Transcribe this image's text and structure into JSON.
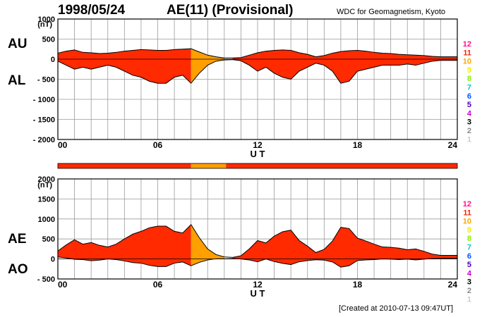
{
  "header": {
    "date": "1998/05/24",
    "title": "AE(11) (Provisional)",
    "credit": "WDC for Geomagnetism, Kyoto"
  },
  "footer": {
    "created": "[Created at 2010-07-13 09:47UT]"
  },
  "colors": {
    "high": "#ff2a00",
    "mid": "#ff9f00",
    "level_ramp": [
      "#cccccc",
      "#888888",
      "#000000",
      "#cc00cc",
      "#4400bb",
      "#0055ff",
      "#00cccc",
      "#88ee00",
      "#eeee00",
      "#ffa500",
      "#ff2200",
      "#ff1188"
    ]
  },
  "chart_data": [
    {
      "type": "area",
      "title": "",
      "labels": {
        "upper": "AU",
        "lower": "AL"
      },
      "unit": "(nT)",
      "xlabel": "U T",
      "xlim": [
        0,
        24
      ],
      "ylim": [
        -2000,
        1000
      ],
      "yticks": [
        "1000",
        "500",
        "0",
        "- 500",
        "- 1000",
        "- 1500",
        "- 2000"
      ],
      "ytick_values": [
        1000,
        500,
        0,
        -500,
        -1000,
        -1500,
        -2000
      ],
      "xticks": [
        "00",
        "06",
        "12",
        "18",
        "24"
      ],
      "grid": true,
      "x": [
        0,
        0.5,
        1,
        1.5,
        2,
        2.5,
        3,
        3.5,
        4,
        4.5,
        5,
        5.5,
        6,
        6.5,
        7,
        7.5,
        8,
        8.5,
        9,
        9.5,
        10,
        10.5,
        11,
        11.5,
        12,
        12.5,
        13,
        13.5,
        14,
        14.5,
        15,
        15.5,
        16,
        16.5,
        17,
        17.5,
        18,
        18.5,
        19,
        19.5,
        20,
        20.5,
        21,
        21.5,
        22,
        22.5,
        23,
        23.5,
        24
      ],
      "series": [
        {
          "name": "AU",
          "values": [
            150,
            200,
            230,
            170,
            160,
            140,
            150,
            170,
            200,
            220,
            240,
            230,
            220,
            220,
            240,
            250,
            260,
            180,
            100,
            60,
            30,
            30,
            40,
            100,
            160,
            200,
            220,
            230,
            220,
            160,
            120,
            60,
            90,
            150,
            190,
            210,
            220,
            200,
            170,
            150,
            140,
            120,
            110,
            100,
            90,
            70,
            60,
            60,
            60
          ]
        },
        {
          "name": "AL",
          "values": [
            -50,
            -150,
            -250,
            -200,
            -250,
            -200,
            -150,
            -200,
            -300,
            -400,
            -450,
            -550,
            -600,
            -600,
            -450,
            -400,
            -600,
            -350,
            -150,
            -50,
            -20,
            -10,
            -40,
            -150,
            -300,
            -200,
            -350,
            -450,
            -500,
            -300,
            -200,
            -100,
            -150,
            -300,
            -600,
            -550,
            -300,
            -250,
            -200,
            -150,
            -150,
            -150,
            -120,
            -150,
            -100,
            -50,
            -30,
            -30,
            -30
          ]
        }
      ]
    },
    {
      "type": "area",
      "title": "",
      "labels": {
        "upper": "AE",
        "lower": "AO"
      },
      "unit": "(nT)",
      "xlabel": "U T",
      "xlim": [
        0,
        24
      ],
      "ylim": [
        -500,
        2000
      ],
      "yticks": [
        "2000",
        "1500",
        "1000",
        "500",
        "0",
        "- 500"
      ],
      "ytick_values": [
        2000,
        1500,
        1000,
        500,
        0,
        -500
      ],
      "xticks": [
        "00",
        "06",
        "12",
        "18",
        "24"
      ],
      "grid": true,
      "x": [
        0,
        0.5,
        1,
        1.5,
        2,
        2.5,
        3,
        3.5,
        4,
        4.5,
        5,
        5.5,
        6,
        6.5,
        7,
        7.5,
        8,
        8.5,
        9,
        9.5,
        10,
        10.5,
        11,
        11.5,
        12,
        12.5,
        13,
        13.5,
        14,
        14.5,
        15,
        15.5,
        16,
        16.5,
        17,
        17.5,
        18,
        18.5,
        19,
        19.5,
        20,
        20.5,
        21,
        21.5,
        22,
        22.5,
        23,
        23.5,
        24
      ],
      "series": [
        {
          "name": "AE",
          "values": [
            200,
            350,
            480,
            370,
            410,
            340,
            300,
            370,
            500,
            620,
            690,
            780,
            820,
            820,
            690,
            650,
            860,
            530,
            250,
            110,
            50,
            40,
            80,
            250,
            460,
            400,
            570,
            680,
            720,
            460,
            320,
            160,
            240,
            450,
            790,
            760,
            520,
            450,
            370,
            300,
            290,
            270,
            230,
            250,
            190,
            120,
            90,
            90,
            90
          ]
        },
        {
          "name": "AO",
          "values": [
            50,
            25,
            -10,
            -15,
            -45,
            -30,
            0,
            -15,
            -50,
            -90,
            -105,
            -160,
            -190,
            -190,
            -105,
            -75,
            -170,
            -85,
            -25,
            5,
            5,
            10,
            0,
            -25,
            -70,
            0,
            -65,
            -110,
            -140,
            -70,
            -40,
            -20,
            -30,
            -75,
            -205,
            -170,
            -40,
            -25,
            -15,
            0,
            -5,
            -15,
            -5,
            -25,
            -5,
            10,
            15,
            15,
            15
          ]
        }
      ]
    }
  ],
  "activity_bar": {
    "segments": [
      {
        "from": 0,
        "to": 8,
        "level": "high"
      },
      {
        "from": 8,
        "to": 10.1,
        "level": "mid"
      },
      {
        "from": 10.1,
        "to": 24,
        "level": "high"
      }
    ]
  },
  "legend": [
    "12",
    "11",
    "10",
    "9",
    "8",
    "7",
    "6",
    "5",
    "4",
    "3",
    "2",
    "1"
  ]
}
